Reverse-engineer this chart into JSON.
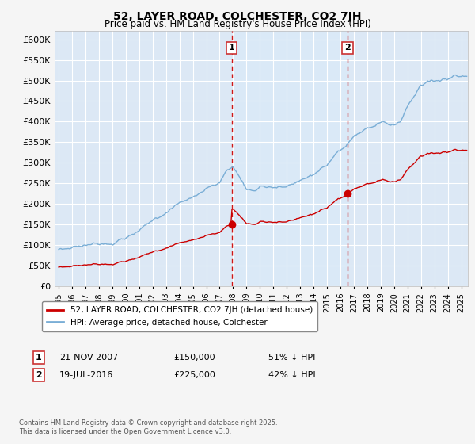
{
  "title": "52, LAYER ROAD, COLCHESTER, CO2 7JH",
  "subtitle": "Price paid vs. HM Land Registry's House Price Index (HPI)",
  "legend_label_red": "52, LAYER ROAD, COLCHESTER, CO2 7JH (detached house)",
  "legend_label_blue": "HPI: Average price, detached house, Colchester",
  "annotation1_date": "21-NOV-2007",
  "annotation1_price": "£150,000",
  "annotation1_price_val": 150000,
  "annotation1_hpi": "51% ↓ HPI",
  "annotation1_year": 2007.89,
  "annotation2_date": "19-JUL-2016",
  "annotation2_price": "£225,000",
  "annotation2_price_val": 225000,
  "annotation2_hpi": "42% ↓ HPI",
  "annotation2_year": 2016.54,
  "footnote": "Contains HM Land Registry data © Crown copyright and database right 2025.\nThis data is licensed under the Open Government Licence v3.0.",
  "ylim": [
    0,
    620000
  ],
  "xlim_start": 1994.7,
  "xlim_end": 2025.5,
  "fig_bg_color": "#f5f5f5",
  "plot_bg_color": "#dce8f5",
  "grid_color": "#ffffff",
  "red_color": "#cc0000",
  "blue_color": "#7aaed6",
  "vline_color": "#cc0000",
  "shade_color": "#daeaf8"
}
